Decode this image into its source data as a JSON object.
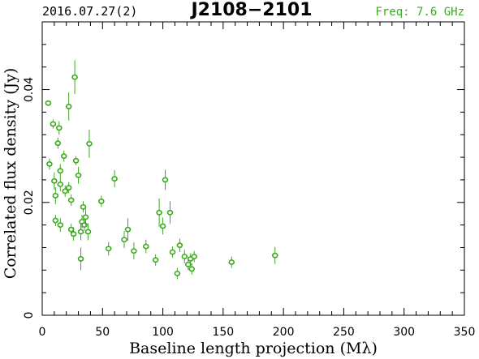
{
  "header": {
    "date_label": "2016.07.27(2)",
    "source_name": "J2108−2101",
    "freq_label": "Freq: 7.6 GHz"
  },
  "colors": {
    "points": "#3cab1e",
    "axes": "#000000",
    "freq_text": "#3cab1e"
  },
  "chart_data": {
    "type": "scatter",
    "xlabel": "Baseline length projection (Mλ)",
    "ylabel": "Correlated flux density (Jy)",
    "xlim": [
      0,
      350
    ],
    "ylim": [
      0,
      0.052
    ],
    "x_ticks": [
      "0",
      "50",
      "100",
      "150",
      "200",
      "250",
      "300",
      "350"
    ],
    "x_tick_values": [
      0,
      50,
      100,
      150,
      200,
      250,
      300,
      350
    ],
    "y_ticks": [
      "0",
      "0.02",
      "0.04"
    ],
    "y_tick_values": [
      0,
      0.02,
      0.04
    ],
    "grid": false,
    "error_bars": true,
    "points": [
      {
        "x": 5,
        "y": 0.0376,
        "err": 0.0004
      },
      {
        "x": 6,
        "y": 0.0268,
        "err": 0.001
      },
      {
        "x": 9,
        "y": 0.0339,
        "err": 0.0008
      },
      {
        "x": 10,
        "y": 0.0238,
        "err": 0.0015
      },
      {
        "x": 11,
        "y": 0.0212,
        "err": 0.0015
      },
      {
        "x": 11,
        "y": 0.0168,
        "err": 0.001
      },
      {
        "x": 13,
        "y": 0.0305,
        "err": 0.001
      },
      {
        "x": 14,
        "y": 0.0332,
        "err": 0.0012
      },
      {
        "x": 15,
        "y": 0.0256,
        "err": 0.0012
      },
      {
        "x": 15,
        "y": 0.0232,
        "err": 0.0012
      },
      {
        "x": 15,
        "y": 0.016,
        "err": 0.0012
      },
      {
        "x": 18,
        "y": 0.0282,
        "err": 0.001
      },
      {
        "x": 19,
        "y": 0.022,
        "err": 0.001
      },
      {
        "x": 22,
        "y": 0.037,
        "err": 0.0025
      },
      {
        "x": 22,
        "y": 0.0226,
        "err": 0.001
      },
      {
        "x": 24,
        "y": 0.0204,
        "err": 0.001
      },
      {
        "x": 24,
        "y": 0.0152,
        "err": 0.001
      },
      {
        "x": 26,
        "y": 0.0144,
        "err": 0.0012
      },
      {
        "x": 27,
        "y": 0.0422,
        "err": 0.003
      },
      {
        "x": 28,
        "y": 0.0274,
        "err": 0.0008
      },
      {
        "x": 30,
        "y": 0.0248,
        "err": 0.0015
      },
      {
        "x": 32,
        "y": 0.0148,
        "err": 0.0015
      },
      {
        "x": 32,
        "y": 0.01,
        "err": 0.002
      },
      {
        "x": 33,
        "y": 0.0166,
        "err": 0.0012
      },
      {
        "x": 34,
        "y": 0.0192,
        "err": 0.001
      },
      {
        "x": 35,
        "y": 0.016,
        "err": 0.001
      },
      {
        "x": 36,
        "y": 0.0174,
        "err": 0.0015
      },
      {
        "x": 38,
        "y": 0.0148,
        "err": 0.0015
      },
      {
        "x": 39,
        "y": 0.0304,
        "err": 0.0025
      },
      {
        "x": 49,
        "y": 0.0202,
        "err": 0.001
      },
      {
        "x": 55,
        "y": 0.0118,
        "err": 0.0012
      },
      {
        "x": 60,
        "y": 0.0242,
        "err": 0.0015
      },
      {
        "x": 68,
        "y": 0.0134,
        "err": 0.0015
      },
      {
        "x": 71,
        "y": 0.0152,
        "err": 0.002
      },
      {
        "x": 76,
        "y": 0.0114,
        "err": 0.0015
      },
      {
        "x": 86,
        "y": 0.0122,
        "err": 0.0012
      },
      {
        "x": 94,
        "y": 0.0098,
        "err": 0.001
      },
      {
        "x": 97,
        "y": 0.0182,
        "err": 0.0025
      },
      {
        "x": 100,
        "y": 0.0158,
        "err": 0.0015
      },
      {
        "x": 102,
        "y": 0.024,
        "err": 0.0018
      },
      {
        "x": 106,
        "y": 0.0182,
        "err": 0.002
      },
      {
        "x": 108,
        "y": 0.0112,
        "err": 0.001
      },
      {
        "x": 112,
        "y": 0.0074,
        "err": 0.001
      },
      {
        "x": 114,
        "y": 0.0124,
        "err": 0.0012
      },
      {
        "x": 118,
        "y": 0.0104,
        "err": 0.0012
      },
      {
        "x": 121,
        "y": 0.009,
        "err": 0.001
      },
      {
        "x": 123,
        "y": 0.01,
        "err": 0.001
      },
      {
        "x": 124,
        "y": 0.0082,
        "err": 0.001
      },
      {
        "x": 126,
        "y": 0.0104,
        "err": 0.001
      },
      {
        "x": 157,
        "y": 0.0094,
        "err": 0.001
      },
      {
        "x": 193,
        "y": 0.0106,
        "err": 0.0015
      }
    ]
  }
}
